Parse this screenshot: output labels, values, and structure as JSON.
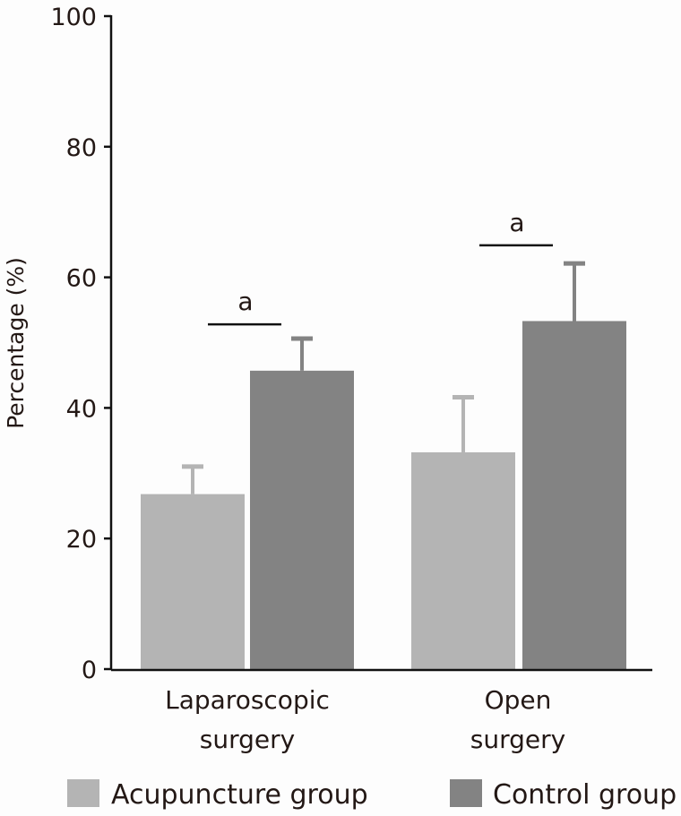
{
  "chart_data": {
    "type": "bar",
    "title": "",
    "xlabel": "",
    "ylabel": "Percentage (%)",
    "ylim": [
      0,
      100
    ],
    "yticks": [
      "0",
      "20",
      "40",
      "60",
      "80",
      "100"
    ],
    "categories": [
      "Laparoscopic surgery",
      "Open surgery"
    ],
    "category_lines": [
      [
        "Laparoscopic",
        "surgery"
      ],
      [
        "Open",
        "surgery"
      ]
    ],
    "series": [
      {
        "name": "Acupuncture group",
        "color": "#b4b4b4",
        "values": [
          26.8,
          33.2
        ],
        "error_upper": [
          31.3,
          41.9
        ]
      },
      {
        "name": "Control group",
        "color": "#838383",
        "values": [
          45.7,
          53.3
        ],
        "error_upper": [
          50.9,
          62.4
        ]
      }
    ],
    "annotations": [
      {
        "category": "Laparoscopic surgery",
        "text": "a",
        "level": 52.8
      },
      {
        "category": "Open surgery",
        "text": "a",
        "level": 64.9
      }
    ],
    "grid": false,
    "legend": "bottom"
  }
}
